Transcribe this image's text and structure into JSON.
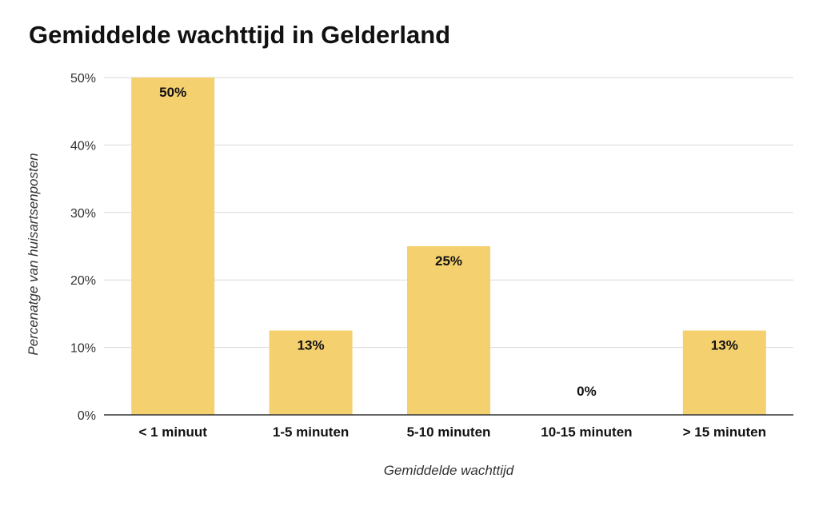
{
  "chart_data": {
    "type": "bar",
    "title": "Gemiddelde wachttijd in Gelderland",
    "xlabel": "Gemiddelde wachttijd",
    "ylabel": "Percenatge van huisartsenposten",
    "categories": [
      "< 1 minuut",
      "1-5 minuten",
      "5-10 minuten",
      "10-15 minuten",
      "> 15 minuten"
    ],
    "values": [
      50,
      12.5,
      25,
      0,
      12.5
    ],
    "data_labels": [
      "50%",
      "13%",
      "25%",
      "0%",
      "13%"
    ],
    "yticks": [
      "0%",
      "10%",
      "20%",
      "30%",
      "40%",
      "50%"
    ],
    "ylim": [
      0,
      50
    ],
    "grid": true,
    "legend": "none",
    "bar_color": "#F5D06E"
  }
}
